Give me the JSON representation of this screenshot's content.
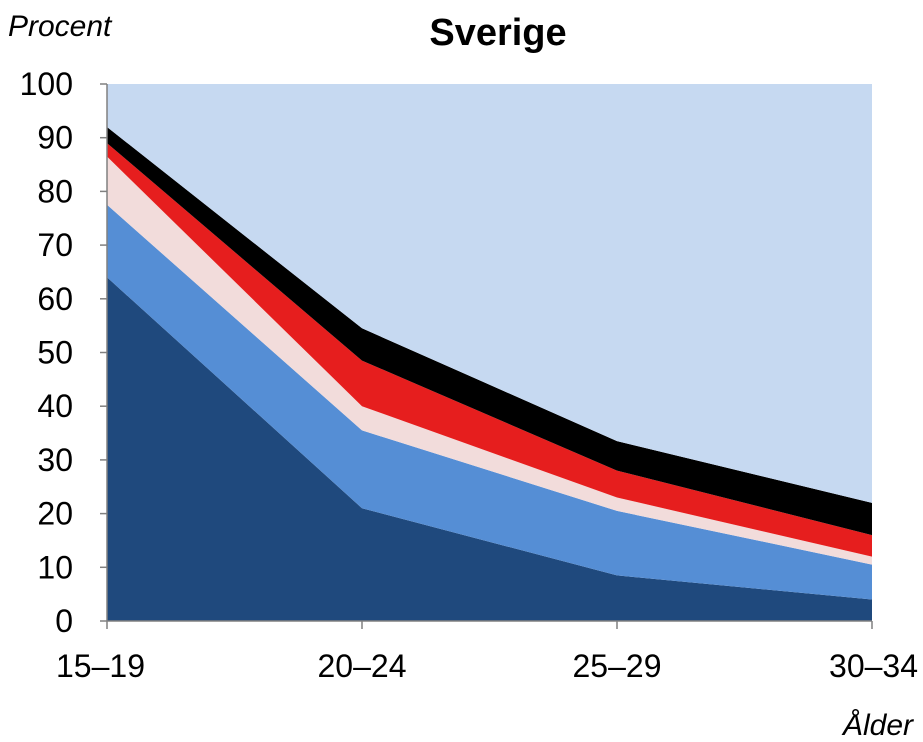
{
  "chart_data": {
    "type": "area",
    "stacked": true,
    "title": "Sverige",
    "ylabel": "Procent",
    "xlabel": "Ålder",
    "categories": [
      "15–19",
      "20–24",
      "25–29",
      "30–34"
    ],
    "ylim": [
      0,
      100
    ],
    "yticks": [
      0,
      10,
      20,
      30,
      40,
      50,
      60,
      70,
      80,
      90,
      100
    ],
    "grid": false,
    "series": [
      {
        "color": "#1f497d",
        "values": [
          64,
          21,
          8.5,
          4
        ]
      },
      {
        "color": "#558ed5",
        "values": [
          13.5,
          14.5,
          12,
          6.5
        ]
      },
      {
        "color": "#f2dcdb",
        "values": [
          9,
          4.5,
          2.5,
          1.5
        ]
      },
      {
        "color": "#e61e1e",
        "values": [
          2.5,
          8.5,
          5,
          4
        ]
      },
      {
        "color": "#000000",
        "values": [
          3,
          6,
          5.5,
          6
        ]
      },
      {
        "color": "#c6d9f1",
        "values": [
          8,
          45.5,
          66.5,
          78
        ]
      }
    ]
  }
}
